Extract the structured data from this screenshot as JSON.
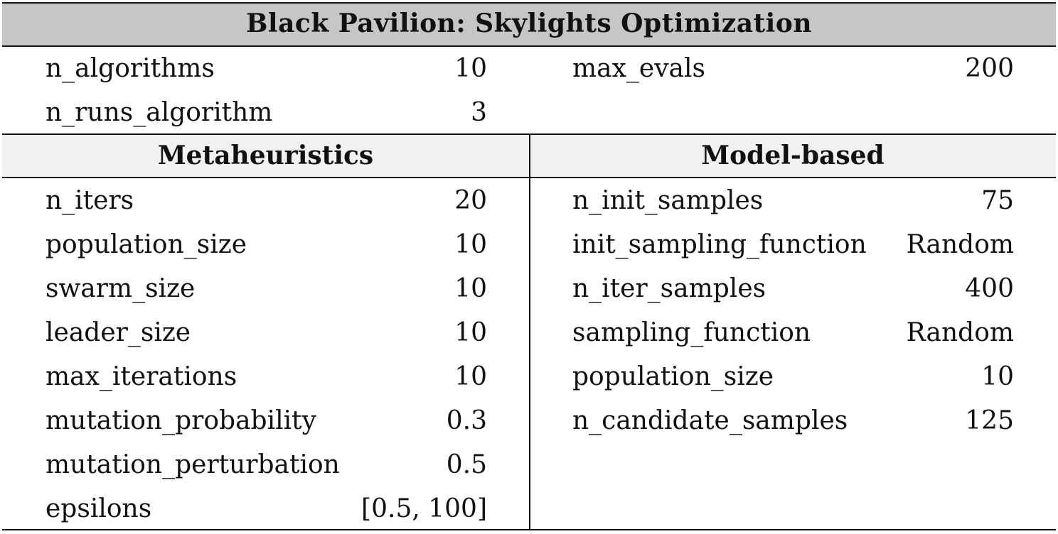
{
  "title": "Black Pavilion: Skylights Optimization",
  "general": [
    {
      "name": "n_algorithms",
      "value": "10"
    },
    {
      "name": "n_runs_algorithm",
      "value": "3"
    }
  ],
  "general_right": [
    {
      "name": "max_evals",
      "value": "200"
    }
  ],
  "sections": {
    "left_header": "Metaheuristics",
    "right_header": "Model-based"
  },
  "metaheuristics": [
    {
      "name": "n_iters",
      "value": "20"
    },
    {
      "name": "population_size",
      "value": "10"
    },
    {
      "name": "swarm_size",
      "value": "10"
    },
    {
      "name": "leader_size",
      "value": "10"
    },
    {
      "name": "max_iterations",
      "value": "10"
    },
    {
      "name": "mutation_probability",
      "value": "0.3"
    },
    {
      "name": "mutation_perturbation",
      "value": "0.5"
    },
    {
      "name": "epsilons",
      "value": "[0.5, 100]"
    }
  ],
  "model_based": [
    {
      "name": "n_init_samples",
      "value": "75"
    },
    {
      "name": "init_sampling_function",
      "value": "Random"
    },
    {
      "name": "n_iter_samples",
      "value": "400"
    },
    {
      "name": "sampling_function",
      "value": "Random"
    },
    {
      "name": "population_size",
      "value": "10"
    },
    {
      "name": "n_candidate_samples",
      "value": "125"
    }
  ]
}
